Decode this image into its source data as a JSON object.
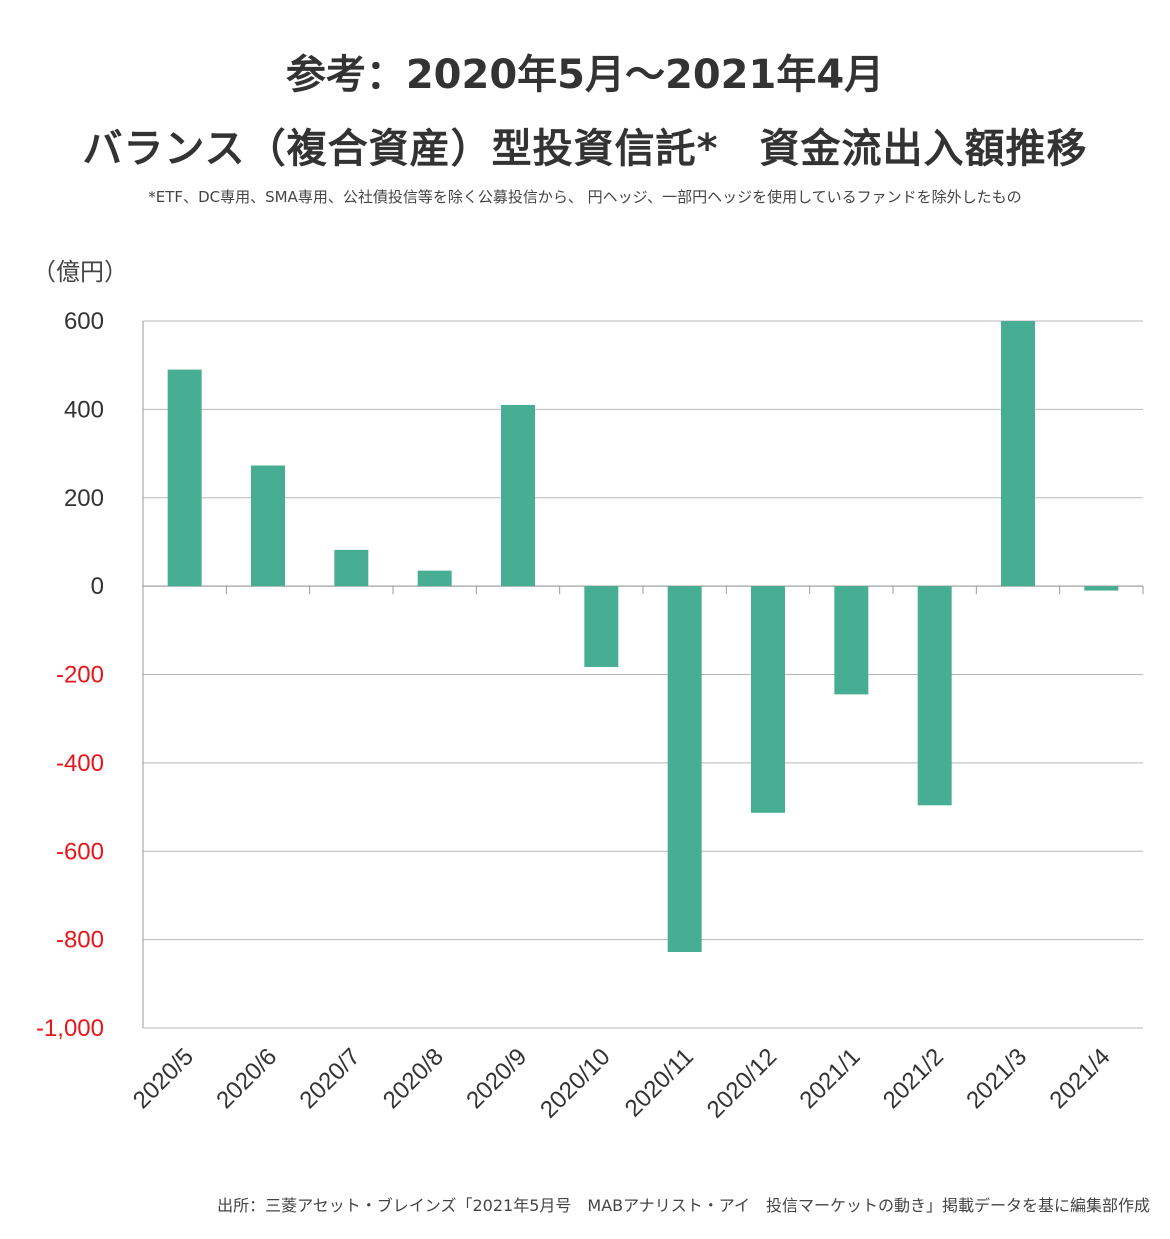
{
  "title_line1": "参考：2020年5月～2021年4月",
  "title_line2": "バランス（複合資産）型投資信託*　資金流出入額推移",
  "footnote": "*ETF、DC専用、SMA専用、公社債投信等を除く公募投信から、 円ヘッジ、一部円ヘッジを使用しているファンドを除外したもの",
  "unit_label": "（億円）",
  "source": "出所：三菱アセット・ブレインズ「2021年5月号　MABアナリスト・アイ　投信マーケットの動き」掲載データを基に編集部作成",
  "colors": {
    "bar": "#48ae93",
    "negative_tick": "#e8151b",
    "positive_tick": "#333333",
    "grid": "#b8b8b8"
  },
  "chart_data": {
    "type": "bar",
    "categories": [
      "2020/5",
      "2020/6",
      "2020/7",
      "2020/8",
      "2020/9",
      "2020/10",
      "2020/11",
      "2020/12",
      "2021/1",
      "2021/2",
      "2021/3",
      "2021/4"
    ],
    "values": [
      490,
      273,
      82,
      35,
      410,
      -183,
      -828,
      -513,
      -245,
      -496,
      600,
      -10
    ],
    "ylim": [
      -1000,
      600
    ],
    "yticks": [
      600,
      400,
      200,
      0,
      -200,
      -400,
      -600,
      -800,
      -1000
    ],
    "ytick_labels": [
      "600",
      "400",
      "200",
      "0",
      "-200",
      "-400",
      "-600",
      "-800",
      "-1,000"
    ],
    "ylabel": "（億円）",
    "grid": true
  }
}
